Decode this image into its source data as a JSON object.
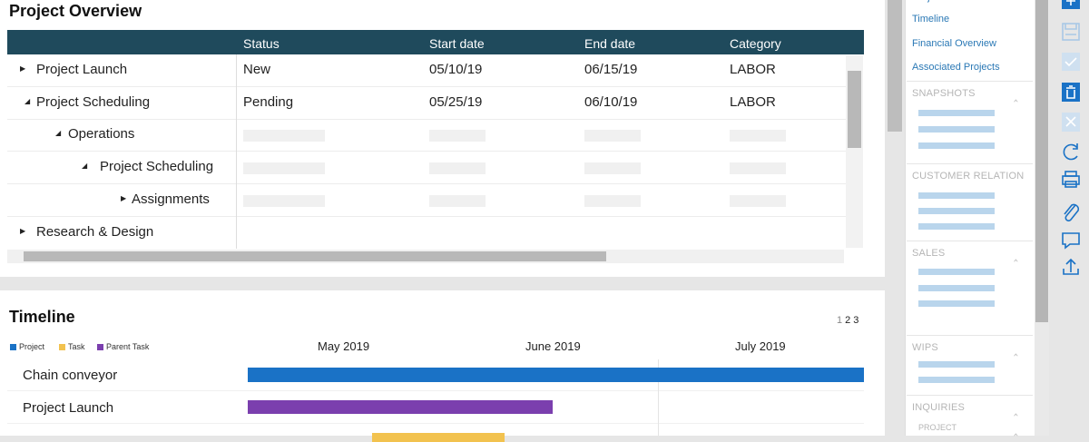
{
  "project_overview": {
    "title": "Project Overview",
    "columns": [
      "Status",
      "Start date",
      "End date",
      "Category"
    ],
    "rows": [
      [
        "Project Launch",
        "New",
        "05/10/19",
        "06/15/19",
        "LABOR"
      ],
      [
        "Project Scheduling",
        "Pending",
        "05/25/19",
        "06/10/19",
        "LABOR"
      ],
      [
        "Operations"
      ],
      [
        "Project Scheduling"
      ],
      [
        "Assignments"
      ],
      [
        "Research & Design"
      ]
    ]
  },
  "timeline": {
    "title": "Timeline",
    "pages": [
      1,
      2,
      3
    ],
    "legend": [
      "Project",
      "Task",
      "Parent Task"
    ],
    "months": [
      "May 2019",
      "June 2019",
      "July 2019"
    ],
    "rows": [
      "Chain conveyor",
      "Project Launch"
    ]
  },
  "sidebar": {
    "links": [
      "Project Overview",
      "Timeline",
      "Financial Overview",
      "Associated Projects"
    ],
    "sections": [
      "SNAPSHOTS",
      "CUSTOMER RELATION",
      "SALES",
      "WIPS",
      "INQUIRIES"
    ],
    "subsection": "PROJECT"
  }
}
